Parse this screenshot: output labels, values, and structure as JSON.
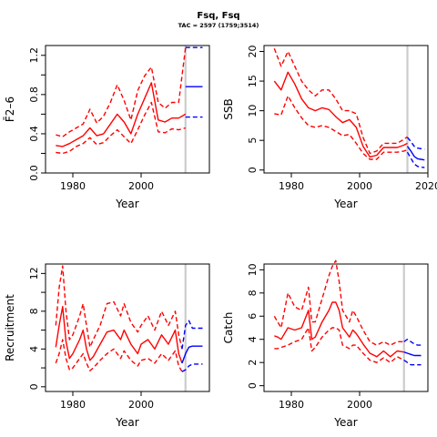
{
  "figure": {
    "title": "Fsq, Fsq",
    "subtitle": "TAC = 2597 (1759;3514)"
  },
  "colors": {
    "historic": "#ff0000",
    "forecast": "#0000ff",
    "assessment_line": "#cccccc",
    "axis": "#000000"
  },
  "chart_data": [
    {
      "id": "fbar",
      "type": "line",
      "ylabel": "F̄2–6",
      "xlabel": "Year",
      "xlim": [
        1972,
        2020
      ],
      "ylim": [
        0,
        1.3
      ],
      "xticks": [
        1980,
        2000
      ],
      "yticks": [
        0,
        0.2,
        0.4,
        0.6,
        0.8,
        1.0,
        1.2
      ],
      "ytick_labels": [
        "0.0",
        "",
        "0.4",
        "",
        "0.8",
        "",
        "1.2"
      ],
      "assessment_year": 2013,
      "hist": {
        "x": [
          1975,
          1977,
          1979,
          1981,
          1983,
          1985,
          1987,
          1989,
          1991,
          1993,
          1995,
          1997,
          1999,
          2001,
          2003,
          2005,
          2007,
          2009,
          2011,
          2013
        ],
        "median": [
          0.28,
          0.27,
          0.3,
          0.34,
          0.38,
          0.46,
          0.38,
          0.4,
          0.5,
          0.6,
          0.52,
          0.4,
          0.6,
          0.76,
          0.92,
          0.54,
          0.52,
          0.56,
          0.56,
          0.6
        ],
        "lower": [
          0.21,
          0.2,
          0.22,
          0.27,
          0.3,
          0.36,
          0.29,
          0.31,
          0.38,
          0.44,
          0.37,
          0.3,
          0.44,
          0.59,
          0.72,
          0.42,
          0.41,
          0.45,
          0.44,
          0.46
        ],
        "upper": [
          0.39,
          0.37,
          0.42,
          0.46,
          0.5,
          0.65,
          0.51,
          0.58,
          0.72,
          0.9,
          0.74,
          0.54,
          0.84,
          0.99,
          1.08,
          0.72,
          0.66,
          0.72,
          0.72,
          1.28
        ]
      },
      "forecast": {
        "x": [
          2013,
          2014,
          2015,
          2016,
          2017,
          2018
        ],
        "median": [
          0.88,
          0.88,
          0.88,
          0.88,
          0.88,
          0.88
        ],
        "lower": [
          0.57,
          0.57,
          0.57,
          0.57,
          0.57,
          0.57
        ],
        "upper": [
          1.28,
          1.28,
          1.28,
          1.28,
          1.28,
          1.28
        ]
      }
    },
    {
      "id": "ssb",
      "type": "line",
      "ylabel": "SSB",
      "xlabel": "Year",
      "xlim": [
        1972,
        2020
      ],
      "ylim": [
        -0.5,
        21
      ],
      "xticks": [
        1980,
        2000,
        2020
      ],
      "yticks": [
        0,
        5,
        10,
        15,
        20
      ],
      "ytick_labels": [
        "0",
        "5",
        "10",
        "15",
        "20"
      ],
      "assessment_year": 2014,
      "hist": {
        "x": [
          1975,
          1977,
          1979,
          1981,
          1983,
          1985,
          1987,
          1989,
          1991,
          1993,
          1995,
          1997,
          1999,
          2001,
          2003,
          2005,
          2007,
          2009,
          2011,
          2013,
          2014
        ],
        "median": [
          15.0,
          13.5,
          16.5,
          14.5,
          12.0,
          10.5,
          10.0,
          10.5,
          10.2,
          9.0,
          8.0,
          8.5,
          7.2,
          4.0,
          2.2,
          2.5,
          3.8,
          3.8,
          3.8,
          4.2,
          4.5
        ],
        "lower": [
          9.5,
          9.3,
          12.5,
          10.5,
          8.8,
          7.5,
          7.2,
          7.5,
          7.2,
          6.5,
          5.8,
          6.0,
          4.5,
          2.8,
          1.8,
          1.8,
          3.0,
          3.0,
          3.0,
          3.2,
          3.4
        ],
        "upper": [
          20.5,
          17.5,
          20.0,
          17.5,
          15.0,
          13.5,
          12.5,
          13.5,
          13.5,
          12.0,
          10.0,
          10.0,
          9.5,
          5.5,
          2.8,
          3.2,
          4.5,
          4.5,
          4.5,
          5.2,
          5.6
        ]
      },
      "forecast": {
        "x": [
          2014,
          2015,
          2016,
          2017,
          2018,
          2019
        ],
        "median": [
          4.0,
          3.2,
          2.3,
          1.9,
          1.8,
          1.7
        ],
        "lower": [
          3.0,
          2.0,
          1.0,
          0.6,
          0.5,
          0.4
        ],
        "upper": [
          5.5,
          4.8,
          4.0,
          3.7,
          3.6,
          3.5
        ]
      }
    },
    {
      "id": "recruitment",
      "type": "line",
      "ylabel": "Recruitment",
      "xlabel": "Year",
      "xlim": [
        1972,
        2020
      ],
      "ylim": [
        -0.5,
        13
      ],
      "xticks": [
        1980,
        2000
      ],
      "yticks": [
        0,
        2,
        4,
        6,
        8,
        10,
        12
      ],
      "ytick_labels": [
        "0",
        "",
        "4",
        "",
        "8",
        "",
        "12"
      ],
      "assessment_year": 2013,
      "hist": {
        "x": [
          1975,
          1976,
          1977,
          1978,
          1979,
          1980,
          1982,
          1983,
          1984,
          1985,
          1986,
          1988,
          1990,
          1992,
          1994,
          1995,
          1997,
          1999,
          2000,
          2002,
          2004,
          2006,
          2008,
          2010,
          2011,
          2012
        ],
        "median": [
          4.2,
          6.5,
          8.5,
          4.8,
          3.0,
          3.5,
          5.0,
          6.0,
          4.0,
          2.8,
          3.2,
          4.5,
          5.8,
          6.0,
          5.0,
          6.0,
          4.5,
          3.5,
          4.5,
          5.0,
          4.0,
          5.5,
          4.5,
          6.0,
          3.5,
          2.5
        ],
        "lower": [
          2.5,
          3.5,
          5.0,
          3.0,
          1.8,
          2.0,
          3.0,
          3.5,
          2.5,
          1.7,
          2.0,
          2.8,
          3.5,
          4.0,
          3.0,
          3.8,
          2.8,
          2.2,
          2.8,
          3.0,
          2.5,
          3.5,
          2.8,
          3.8,
          2.2,
          1.6
        ],
        "upper": [
          6.5,
          10.5,
          12.8,
          8.0,
          5.0,
          5.5,
          7.5,
          8.8,
          6.5,
          4.2,
          5.0,
          6.5,
          8.8,
          9.0,
          7.5,
          8.8,
          6.8,
          5.8,
          6.5,
          7.5,
          6.0,
          8.0,
          6.5,
          8.0,
          5.5,
          4.0
        ]
      },
      "forecast": {
        "x": [
          2012,
          2013,
          2014,
          2015,
          2016,
          2017,
          2018
        ],
        "median": [
          2.5,
          3.5,
          4.2,
          4.3,
          4.3,
          4.3,
          4.3
        ],
        "lower": [
          1.6,
          1.8,
          2.2,
          2.4,
          2.4,
          2.4,
          2.4
        ],
        "upper": [
          4.0,
          6.5,
          7.0,
          6.2,
          6.2,
          6.2,
          6.2
        ]
      }
    },
    {
      "id": "catch",
      "type": "line",
      "ylabel": "Catch",
      "xlabel": "Year",
      "xlim": [
        1972,
        2020
      ],
      "ylim": [
        -0.5,
        10.5
      ],
      "xticks": [
        1980,
        2000
      ],
      "yticks": [
        0,
        2,
        4,
        6,
        8,
        10
      ],
      "ytick_labels": [
        "0",
        "2",
        "4",
        "6",
        "8",
        "10"
      ],
      "assessment_year": 2013,
      "hist": {
        "x": [
          1975,
          1976,
          1977,
          1979,
          1981,
          1983,
          1985,
          1986,
          1987,
          1989,
          1991,
          1992,
          1993,
          1994,
          1995,
          1997,
          1998,
          1999,
          2001,
          2003,
          2005,
          2007,
          2009,
          2011,
          2013
        ],
        "median": [
          4.3,
          4.2,
          4.0,
          5.0,
          4.8,
          5.0,
          6.5,
          4.0,
          4.2,
          5.5,
          6.5,
          7.2,
          7.2,
          6.5,
          5.0,
          4.2,
          4.8,
          4.5,
          3.6,
          2.8,
          2.5,
          3.0,
          2.5,
          3.0,
          2.9
        ],
        "lower": [
          3.2,
          3.2,
          3.3,
          3.5,
          3.8,
          4.0,
          5.0,
          3.0,
          3.3,
          4.2,
          4.8,
          5.0,
          5.0,
          4.8,
          3.5,
          3.2,
          3.5,
          3.5,
          2.8,
          2.2,
          2.0,
          2.4,
          2.0,
          2.5,
          2.2
        ],
        "upper": [
          6.0,
          5.5,
          5.0,
          8.0,
          6.8,
          6.5,
          8.5,
          5.5,
          5.5,
          7.5,
          9.5,
          10.3,
          10.8,
          9.0,
          6.5,
          5.5,
          6.5,
          6.0,
          4.8,
          3.8,
          3.5,
          3.8,
          3.5,
          3.8,
          3.8
        ]
      },
      "forecast": {
        "x": [
          2013,
          2014,
          2015,
          2016,
          2017,
          2018
        ],
        "median": [
          2.9,
          2.8,
          2.7,
          2.6,
          2.6,
          2.6
        ],
        "lower": [
          2.2,
          2.0,
          1.8,
          1.8,
          1.8,
          1.8
        ],
        "upper": [
          3.8,
          4.0,
          3.8,
          3.6,
          3.5,
          3.5
        ]
      }
    }
  ]
}
